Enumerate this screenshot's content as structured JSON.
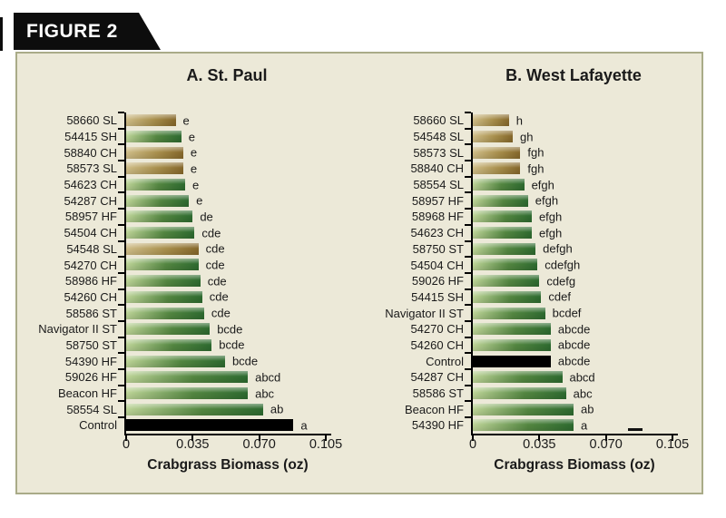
{
  "figure_label": "FIGURE 2",
  "colors": {
    "panel_bg": "#ece9d8",
    "panel_border": "#a9ab88",
    "banner_bg": "#0d0d0d",
    "banner_text": "#ffffff",
    "bar_green_light": "#bdd497",
    "bar_green_dark": "#2d6a2f",
    "bar_tan_light": "#cfbd88",
    "bar_tan_dark": "#85672a",
    "bar_control": "#000000",
    "axis": "#000000",
    "text": "#1a1a1a"
  },
  "chart_data": [
    {
      "type": "bar",
      "orientation": "horizontal",
      "title": "A. St. Paul",
      "xlabel": "Crabgrass Biomass (oz)",
      "xlim": [
        0,
        0.105
      ],
      "xticks": [
        0,
        0.035,
        0.07,
        0.105
      ],
      "xtick_labels": [
        "0",
        "0.035",
        "0.070",
        "0.105"
      ],
      "grid": false,
      "rows": [
        {
          "label": "58660 SL",
          "value": 0.026,
          "letters": "e",
          "color": "tan"
        },
        {
          "label": "54415 SH",
          "value": 0.029,
          "letters": "e",
          "color": "green"
        },
        {
          "label": "58840 CH",
          "value": 0.03,
          "letters": "e",
          "color": "tan"
        },
        {
          "label": "58573 SL",
          "value": 0.03,
          "letters": "e",
          "color": "tan"
        },
        {
          "label": "54623 CH",
          "value": 0.031,
          "letters": "e",
          "color": "green"
        },
        {
          "label": "54287 CH",
          "value": 0.033,
          "letters": "e",
          "color": "green"
        },
        {
          "label": "58957 HF",
          "value": 0.035,
          "letters": "de",
          "color": "green"
        },
        {
          "label": "54504 CH",
          "value": 0.036,
          "letters": "cde",
          "color": "green"
        },
        {
          "label": "54548 SL",
          "value": 0.038,
          "letters": "cde",
          "color": "tan"
        },
        {
          "label": "54270 CH",
          "value": 0.038,
          "letters": "cde",
          "color": "green"
        },
        {
          "label": "58986 HF",
          "value": 0.039,
          "letters": "cde",
          "color": "green"
        },
        {
          "label": "54260 CH",
          "value": 0.04,
          "letters": "cde",
          "color": "green"
        },
        {
          "label": "58586 ST",
          "value": 0.041,
          "letters": "cde",
          "color": "green"
        },
        {
          "label": "Navigator II ST",
          "value": 0.044,
          "letters": "bcde",
          "color": "green"
        },
        {
          "label": "58750 ST",
          "value": 0.045,
          "letters": "bcde",
          "color": "green"
        },
        {
          "label": "54390 HF",
          "value": 0.052,
          "letters": "bcde",
          "color": "green"
        },
        {
          "label": "59026 HF",
          "value": 0.064,
          "letters": "abcd",
          "color": "green"
        },
        {
          "label": "Beacon HF",
          "value": 0.064,
          "letters": "abc",
          "color": "green"
        },
        {
          "label": "58554 SL",
          "value": 0.072,
          "letters": "ab",
          "color": "green"
        },
        {
          "label": "Control",
          "value": 0.088,
          "letters": "a",
          "color": "black"
        }
      ]
    },
    {
      "type": "bar",
      "orientation": "horizontal",
      "title": "B. West Lafayette",
      "xlabel": "Crabgrass Biomass (oz)",
      "xlim": [
        0,
        0.105
      ],
      "xticks": [
        0,
        0.035,
        0.07,
        0.105
      ],
      "xtick_labels": [
        "0",
        "0.035",
        "0.070",
        "0.105"
      ],
      "grid": false,
      "rows": [
        {
          "label": "58660 SL",
          "value": 0.019,
          "letters": "h",
          "color": "tan"
        },
        {
          "label": "54548 SL",
          "value": 0.021,
          "letters": "gh",
          "color": "tan"
        },
        {
          "label": "58573 SL",
          "value": 0.025,
          "letters": "fgh",
          "color": "tan"
        },
        {
          "label": "58840 CH",
          "value": 0.025,
          "letters": "fgh",
          "color": "tan"
        },
        {
          "label": "58554 SL",
          "value": 0.027,
          "letters": "efgh",
          "color": "green"
        },
        {
          "label": "58957 HF",
          "value": 0.029,
          "letters": "efgh",
          "color": "green"
        },
        {
          "label": "58968 HF",
          "value": 0.031,
          "letters": "efgh",
          "color": "green"
        },
        {
          "label": "54623 CH",
          "value": 0.031,
          "letters": "efgh",
          "color": "green"
        },
        {
          "label": "58750 ST",
          "value": 0.033,
          "letters": "defgh",
          "color": "green"
        },
        {
          "label": "54504 CH",
          "value": 0.034,
          "letters": "cdefgh",
          "color": "green"
        },
        {
          "label": "59026 HF",
          "value": 0.035,
          "letters": "cdefg",
          "color": "green"
        },
        {
          "label": "54415 SH",
          "value": 0.036,
          "letters": "cdef",
          "color": "green"
        },
        {
          "label": "Navigator II ST",
          "value": 0.038,
          "letters": "bcdef",
          "color": "green"
        },
        {
          "label": "54270 CH",
          "value": 0.041,
          "letters": "abcde",
          "color": "green"
        },
        {
          "label": "54260 CH",
          "value": 0.041,
          "letters": "abcde",
          "color": "green"
        },
        {
          "label": "Control",
          "value": 0.041,
          "letters": "abcde",
          "color": "black"
        },
        {
          "label": "54287 CH",
          "value": 0.047,
          "letters": "abcd",
          "color": "green"
        },
        {
          "label": "58586 ST",
          "value": 0.049,
          "letters": "abc",
          "color": "green"
        },
        {
          "label": "Beacon HF",
          "value": 0.053,
          "letters": "ab",
          "color": "green"
        },
        {
          "label": "54390 HF",
          "value": 0.053,
          "letters": "a",
          "color": "green"
        }
      ]
    }
  ]
}
